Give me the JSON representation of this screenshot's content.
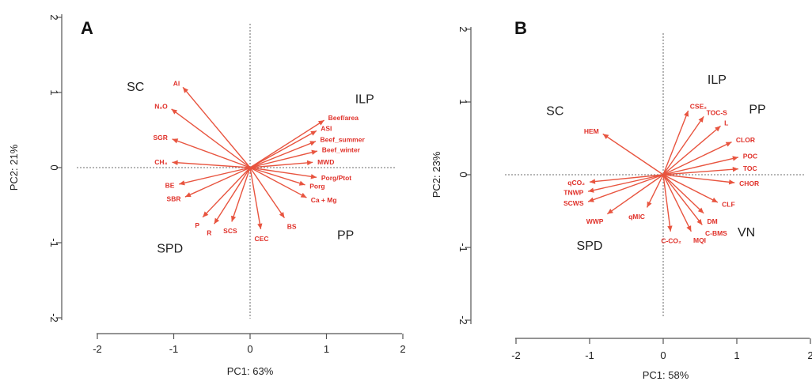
{
  "colors": {
    "arrow": "#e8543f",
    "label": "#e0312a",
    "text": "#222222"
  },
  "chart_data": [
    {
      "type": "scatter",
      "panel": "A",
      "xlabel": "PC1: 63%",
      "ylabel": "PC2: 21%",
      "xlim": [
        -2,
        2
      ],
      "ylim": [
        -2,
        2
      ],
      "xticks": [
        "-2",
        "-1",
        "0",
        "1",
        "2"
      ],
      "yticks": [
        "-2",
        "-1",
        "0",
        "1",
        "2"
      ],
      "reference_lines": true,
      "groups": [
        {
          "label": "SC",
          "x": -1.5,
          "y": 1.02
        },
        {
          "label": "ILP",
          "x": 1.5,
          "y": 0.86
        },
        {
          "label": "PP",
          "x": 1.25,
          "y": -0.95
        },
        {
          "label": "SPD",
          "x": -1.05,
          "y": -1.13
        }
      ],
      "vectors": [
        {
          "label": "Al",
          "x": -0.88,
          "y": 1.07
        },
        {
          "label": "N₂O",
          "x": -1.03,
          "y": 0.78
        },
        {
          "label": "SGR",
          "x": -1.02,
          "y": 0.38
        },
        {
          "label": "CH₄",
          "x": -1.02,
          "y": 0.07
        },
        {
          "label": "BE",
          "x": -0.93,
          "y": -0.22
        },
        {
          "label": "SBR",
          "x": -0.85,
          "y": -0.39
        },
        {
          "label": "P",
          "x": -0.62,
          "y": -0.66
        },
        {
          "label": "R",
          "x": -0.47,
          "y": -0.75
        },
        {
          "label": "SCS",
          "x": -0.24,
          "y": -0.72
        },
        {
          "label": "CEC",
          "x": 0.14,
          "y": -0.82
        },
        {
          "label": "BS",
          "x": 0.45,
          "y": -0.67
        },
        {
          "label": "Ca + Mg",
          "x": 0.74,
          "y": -0.4
        },
        {
          "label": "Porg",
          "x": 0.72,
          "y": -0.23
        },
        {
          "label": "Porg/Ptot",
          "x": 0.87,
          "y": -0.13
        },
        {
          "label": "MWD",
          "x": 0.82,
          "y": 0.07
        },
        {
          "label": "Beef_winter",
          "x": 0.88,
          "y": 0.22
        },
        {
          "label": "Beef_summer",
          "x": 0.86,
          "y": 0.35
        },
        {
          "label": "ASI",
          "x": 0.87,
          "y": 0.49
        },
        {
          "label": "Beef/area",
          "x": 0.97,
          "y": 0.63
        }
      ]
    },
    {
      "type": "scatter",
      "panel": "B",
      "xlabel": "PC1: 58%",
      "ylabel": "PC2: 23%",
      "xlim": [
        -2,
        2
      ],
      "ylim": [
        -2,
        2
      ],
      "xticks": [
        "-2",
        "-1",
        "0",
        "1",
        "2"
      ],
      "yticks": [
        "-2",
        "-1",
        "0",
        "1",
        "2"
      ],
      "reference_lines": true,
      "groups": [
        {
          "label": "SC",
          "x": -1.47,
          "y": 0.82
        },
        {
          "label": "ILP",
          "x": 0.73,
          "y": 1.25
        },
        {
          "label": "PP",
          "x": 1.28,
          "y": 0.84
        },
        {
          "label": "SPD",
          "x": -1.0,
          "y": -1.03
        },
        {
          "label": "VN",
          "x": 1.13,
          "y": -0.85
        }
      ],
      "vectors": [
        {
          "label": "HEM",
          "x": -0.82,
          "y": 0.56
        },
        {
          "label": "CSE₂",
          "x": 0.34,
          "y": 0.88
        },
        {
          "label": "TOC-S",
          "x": 0.55,
          "y": 0.8
        },
        {
          "label": "L",
          "x": 0.78,
          "y": 0.67
        },
        {
          "label": "CLOR",
          "x": 0.93,
          "y": 0.45
        },
        {
          "label": "POC",
          "x": 1.02,
          "y": 0.24
        },
        {
          "label": "TOC",
          "x": 1.02,
          "y": 0.08
        },
        {
          "label": "CHOR",
          "x": 0.97,
          "y": -0.11
        },
        {
          "label": "CLF",
          "x": 0.74,
          "y": -0.38
        },
        {
          "label": "DM",
          "x": 0.55,
          "y": -0.53
        },
        {
          "label": "C-BMS",
          "x": 0.53,
          "y": -0.69
        },
        {
          "label": "MQI",
          "x": 0.38,
          "y": -0.78
        },
        {
          "label": "C-CO₂",
          "x": 0.1,
          "y": -0.78
        },
        {
          "label": "qMIC",
          "x": -0.22,
          "y": -0.45
        },
        {
          "label": "qCO₂",
          "x": -1.0,
          "y": -0.1
        },
        {
          "label": "TNWP",
          "x": -1.02,
          "y": -0.23
        },
        {
          "label": "SCWS",
          "x": -1.02,
          "y": -0.37
        },
        {
          "label": "WWP",
          "x": -0.76,
          "y": -0.54
        }
      ]
    }
  ],
  "panels": [
    {
      "letter": "A",
      "xlabel": "PC1: 63%",
      "ylabel": "PC2: 21%",
      "ticks": [
        "-2",
        "-1",
        "0",
        "1",
        "2"
      ]
    },
    {
      "letter": "B",
      "xlabel": "PC1: 58%",
      "ylabel": "PC2: 23%",
      "ticks": [
        "-2",
        "-1",
        "0",
        "1",
        "2"
      ]
    }
  ]
}
